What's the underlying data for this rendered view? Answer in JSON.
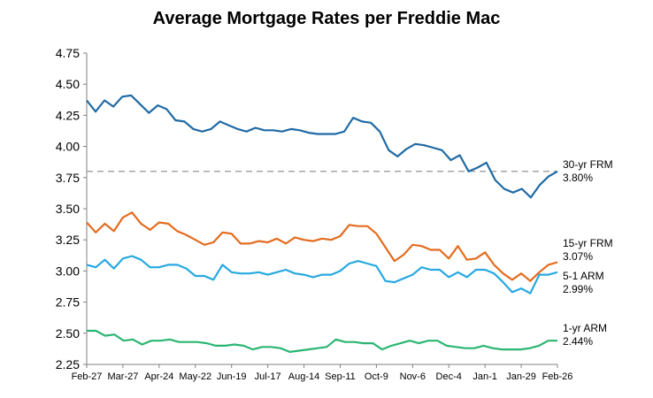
{
  "chart_data": {
    "type": "line",
    "title": "Average Mortgage Rates per Freddie Mac",
    "xlabel": "",
    "ylabel": "",
    "ylim": [
      2.25,
      4.75
    ],
    "yticks": [
      "4.75",
      "4.50",
      "4.25",
      "4.00",
      "3.75",
      "3.50",
      "3.25",
      "3.00",
      "2.75",
      "2.50",
      "2.25"
    ],
    "xtick_labels": [
      "Feb-27",
      "Mar-27",
      "Apr-24",
      "May-22",
      "Jun-19",
      "Jul-17",
      "Aug-14",
      "Sep-11",
      "Oct-9",
      "Nov-6",
      "Dec-4",
      "Jan-1",
      "Jan-29",
      "Feb-26"
    ],
    "reference_line": {
      "value": 3.8,
      "style": "dashed",
      "color": "#a6a6a6"
    },
    "series": [
      {
        "name": "30-yr FRM",
        "label_value": "3.80%",
        "color": "#1f6aa5",
        "values": [
          4.37,
          4.28,
          4.37,
          4.32,
          4.4,
          4.41,
          4.34,
          4.27,
          4.33,
          4.3,
          4.21,
          4.2,
          4.14,
          4.12,
          4.14,
          4.2,
          4.17,
          4.14,
          4.12,
          4.15,
          4.13,
          4.13,
          4.12,
          4.14,
          4.13,
          4.11,
          4.1,
          4.1,
          4.1,
          4.12,
          4.23,
          4.2,
          4.19,
          4.12,
          3.97,
          3.92,
          3.98,
          4.02,
          4.01,
          3.99,
          3.97,
          3.89,
          3.93,
          3.8,
          3.83,
          3.87,
          3.73,
          3.66,
          3.63,
          3.66,
          3.59,
          3.69,
          3.76,
          3.8
        ]
      },
      {
        "name": "15-yr FRM",
        "label_value": "3.07%",
        "color": "#e36c1e",
        "values": [
          3.39,
          3.31,
          3.38,
          3.32,
          3.43,
          3.47,
          3.38,
          3.33,
          3.39,
          3.38,
          3.32,
          3.29,
          3.25,
          3.21,
          3.23,
          3.31,
          3.3,
          3.22,
          3.22,
          3.24,
          3.23,
          3.26,
          3.22,
          3.27,
          3.25,
          3.24,
          3.26,
          3.25,
          3.28,
          3.37,
          3.36,
          3.36,
          3.3,
          3.19,
          3.08,
          3.13,
          3.21,
          3.2,
          3.17,
          3.17,
          3.1,
          3.2,
          3.09,
          3.1,
          3.15,
          3.05,
          2.98,
          2.93,
          2.98,
          2.92,
          2.99,
          3.05,
          3.07
        ]
      },
      {
        "name": "5-1 ARM",
        "label_value": "2.99%",
        "color": "#27a9e1",
        "values": [
          3.05,
          3.03,
          3.09,
          3.02,
          3.1,
          3.12,
          3.09,
          3.03,
          3.03,
          3.05,
          3.05,
          3.02,
          2.96,
          2.96,
          2.93,
          3.05,
          2.99,
          2.98,
          2.98,
          2.99,
          2.97,
          2.99,
          3.01,
          2.98,
          2.97,
          2.95,
          2.97,
          2.97,
          3.0,
          3.06,
          3.08,
          3.06,
          3.04,
          2.92,
          2.91,
          2.94,
          2.97,
          3.03,
          3.01,
          3.01,
          2.95,
          2.99,
          2.95,
          3.01,
          3.01,
          2.98,
          2.91,
          2.83,
          2.86,
          2.82,
          2.97,
          2.97,
          2.99
        ]
      },
      {
        "name": "1-yr ARM",
        "label_value": "2.44%",
        "color": "#2bb673",
        "values": [
          2.52,
          2.52,
          2.48,
          2.49,
          2.44,
          2.45,
          2.41,
          2.44,
          2.44,
          2.45,
          2.43,
          2.43,
          2.43,
          2.42,
          2.4,
          2.4,
          2.41,
          2.4,
          2.37,
          2.39,
          2.39,
          2.38,
          2.35,
          2.36,
          2.37,
          2.38,
          2.39,
          2.45,
          2.43,
          2.43,
          2.42,
          2.42,
          2.37,
          2.4,
          2.42,
          2.44,
          2.42,
          2.44,
          2.44,
          2.4,
          2.39,
          2.38,
          2.38,
          2.4,
          2.38,
          2.37,
          2.37,
          2.37,
          2.38,
          2.4,
          2.44,
          2.44
        ]
      }
    ]
  }
}
